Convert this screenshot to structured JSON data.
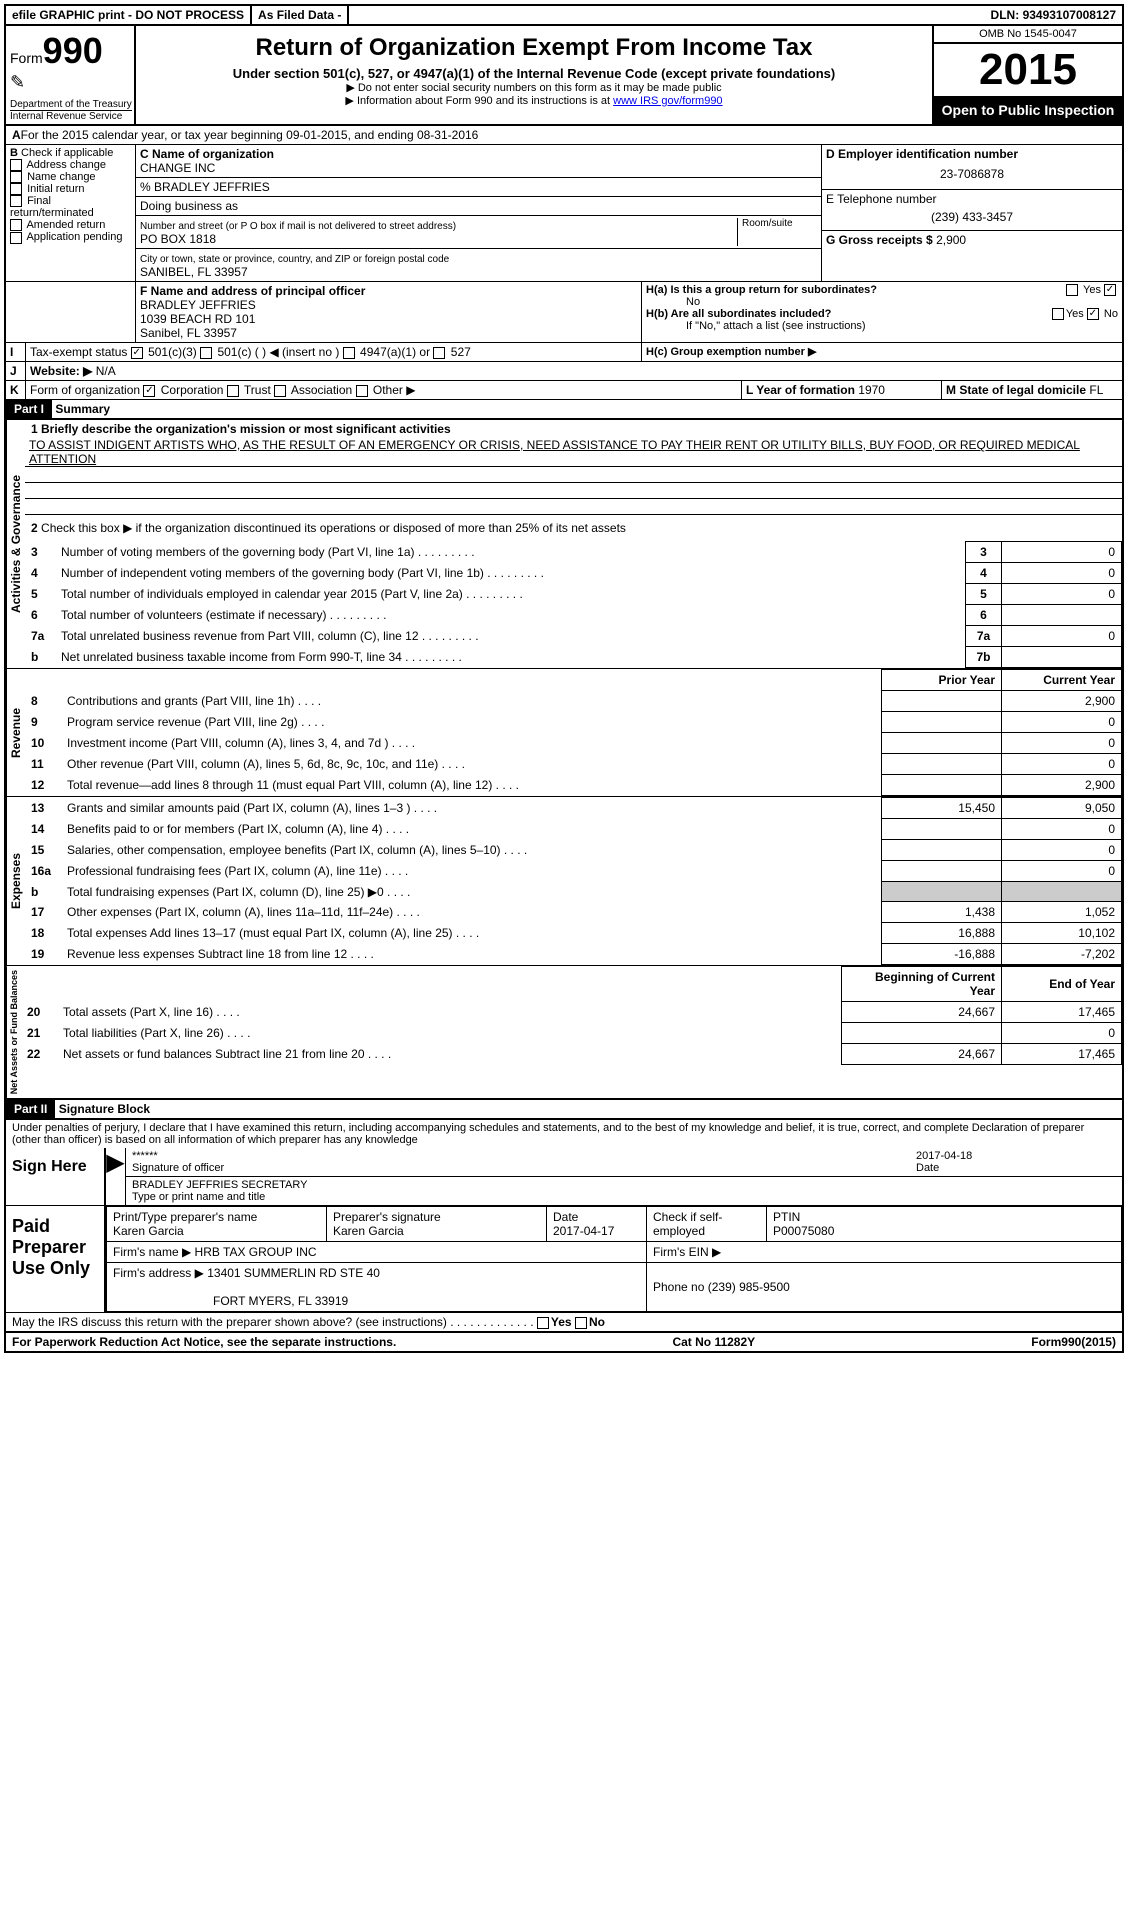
{
  "topbar": {
    "efile": "efile GRAPHIC print - DO NOT PROCESS",
    "asfiled": "As Filed Data -",
    "dln_label": "DLN:",
    "dln": "93493107008127"
  },
  "header": {
    "form_label": "Form",
    "form_num": "990",
    "dept": "Department of the Treasury",
    "irs": "Internal Revenue Service",
    "title": "Return of Organization Exempt From Income Tax",
    "subtitle": "Under section 501(c), 527, or 4947(a)(1) of the Internal Revenue Code (except private foundations)",
    "note1": "▶ Do not enter social security numbers on this form as it may be made public",
    "note2": "▶ Information about Form 990 and its instructions is at ",
    "note2_link": "www IRS gov/form990",
    "omb": "OMB No 1545-0047",
    "year": "2015",
    "open": "Open to Public Inspection"
  },
  "lineA": {
    "text": "For the 2015 calendar year, or tax year beginning 09-01-2015",
    "ending": ", and ending 08-31-2016"
  },
  "sectionB": {
    "label": "Check if applicable",
    "items": [
      "Address change",
      "Name change",
      "Initial return",
      "Final return/terminated",
      "Amended return",
      "Application pending"
    ]
  },
  "sectionC": {
    "name_label": "C Name of organization",
    "name": "CHANGE INC",
    "care_of": "% BRADLEY JEFFRIES",
    "dba_label": "Doing business as",
    "street_label": "Number and street (or P O  box if mail is not delivered to street address)",
    "room_label": "Room/suite",
    "street": "PO BOX 1818",
    "city_label": "City or town, state or province, country, and ZIP or foreign postal code",
    "city": "SANIBEL, FL  33957"
  },
  "sectionD": {
    "label": "D Employer identification number",
    "ein": "23-7086878"
  },
  "sectionE": {
    "label": "E Telephone number",
    "phone": "(239) 433-3457"
  },
  "sectionG": {
    "label": "G Gross receipts $",
    "amount": "2,900"
  },
  "sectionF": {
    "label": "F Name and address of principal officer",
    "name": "BRADLEY JEFFRIES",
    "addr1": "1039 BEACH RD 101",
    "addr2": "Sanibel, FL  33957"
  },
  "sectionH": {
    "ha": "H(a)  Is this a group return for subordinates?",
    "ha_no": "No",
    "hb": "H(b)  Are all subordinates included?",
    "hb_note": "If \"No,\" attach a list  (see instructions)",
    "hc": "H(c)   Group exemption number ▶"
  },
  "sectionI": {
    "label": "Tax-exempt status",
    "opt1": "501(c)(3)",
    "opt2": "501(c) (  ) ◀ (insert no )",
    "opt3": "4947(a)(1) or",
    "opt4": "527"
  },
  "sectionJ": {
    "label": "Website: ▶",
    "value": "N/A"
  },
  "sectionK": {
    "label": "Form of organization",
    "opts": [
      "Corporation",
      "Trust",
      "Association",
      "Other ▶"
    ]
  },
  "sectionL": {
    "label": "L Year of formation",
    "value": "1970"
  },
  "sectionM": {
    "label": "M State of legal domicile",
    "value": "FL"
  },
  "part1": {
    "header": "Part I",
    "title": "Summary",
    "mission_label": "1 Briefly describe the organization's mission or most significant activities",
    "mission": "TO ASSIST INDIGENT ARTISTS WHO, AS THE RESULT OF AN EMERGENCY OR CRISIS, NEED ASSISTANCE TO PAY THEIR RENT OR UTILITY BILLS, BUY FOOD, OR REQUIRED MEDICAL ATTENTION",
    "line2": "Check this box ▶     if the organization discontinued its operations or disposed of more than 25% of its net assets",
    "governance_label": "Activities & Governance",
    "revenue_label": "Revenue",
    "expenses_label": "Expenses",
    "netassets_label": "Net Assets or Fund Balances",
    "rows_gov": [
      {
        "n": "3",
        "d": "Number of voting members of the governing body (Part VI, line 1a)",
        "ln": "3",
        "v": "0"
      },
      {
        "n": "4",
        "d": "Number of independent voting members of the governing body (Part VI, line 1b)",
        "ln": "4",
        "v": "0"
      },
      {
        "n": "5",
        "d": "Total number of individuals employed in calendar year 2015 (Part V, line 2a)",
        "ln": "5",
        "v": "0"
      },
      {
        "n": "6",
        "d": "Total number of volunteers (estimate if necessary)",
        "ln": "6",
        "v": ""
      },
      {
        "n": "7a",
        "d": "Total unrelated business revenue from Part VIII, column (C), line 12",
        "ln": "7a",
        "v": "0"
      },
      {
        "n": "b",
        "d": "Net unrelated business taxable income from Form 990-T, line 34",
        "ln": "7b",
        "v": ""
      }
    ],
    "col_prior": "Prior Year",
    "col_current": "Current Year",
    "rows_rev": [
      {
        "n": "8",
        "d": "Contributions and grants (Part VIII, line 1h)",
        "p": "",
        "c": "2,900"
      },
      {
        "n": "9",
        "d": "Program service revenue (Part VIII, line 2g)",
        "p": "",
        "c": "0"
      },
      {
        "n": "10",
        "d": "Investment income (Part VIII, column (A), lines 3, 4, and 7d )",
        "p": "",
        "c": "0"
      },
      {
        "n": "11",
        "d": "Other revenue (Part VIII, column (A), lines 5, 6d, 8c, 9c, 10c, and 11e)",
        "p": "",
        "c": "0"
      },
      {
        "n": "12",
        "d": "Total revenue—add lines 8 through 11 (must equal Part VIII, column (A), line 12)",
        "p": "",
        "c": "2,900"
      }
    ],
    "rows_exp": [
      {
        "n": "13",
        "d": "Grants and similar amounts paid (Part IX, column (A), lines 1–3 )",
        "p": "15,450",
        "c": "9,050"
      },
      {
        "n": "14",
        "d": "Benefits paid to or for members (Part IX, column (A), line 4)",
        "p": "",
        "c": "0"
      },
      {
        "n": "15",
        "d": "Salaries, other compensation, employee benefits (Part IX, column (A), lines 5–10)",
        "p": "",
        "c": "0"
      },
      {
        "n": "16a",
        "d": "Professional fundraising fees (Part IX, column (A), line 11e)",
        "p": "",
        "c": "0"
      },
      {
        "n": "b",
        "d": "Total fundraising expenses (Part IX, column (D), line 25) ▶0",
        "p": "",
        "c": ""
      },
      {
        "n": "17",
        "d": "Other expenses (Part IX, column (A), lines 11a–11d, 11f–24e)",
        "p": "1,438",
        "c": "1,052"
      },
      {
        "n": "18",
        "d": "Total expenses  Add lines 13–17 (must equal Part IX, column (A), line 25)",
        "p": "16,888",
        "c": "10,102"
      },
      {
        "n": "19",
        "d": "Revenue less expenses  Subtract line 18 from line 12",
        "p": "-16,888",
        "c": "-7,202"
      }
    ],
    "col_begin": "Beginning of Current Year",
    "col_end": "End of Year",
    "rows_net": [
      {
        "n": "20",
        "d": "Total assets (Part X, line 16)",
        "p": "24,667",
        "c": "17,465"
      },
      {
        "n": "21",
        "d": "Total liabilities (Part X, line 26)",
        "p": "",
        "c": "0"
      },
      {
        "n": "22",
        "d": "Net assets or fund balances  Subtract line 21 from line 20",
        "p": "24,667",
        "c": "17,465"
      }
    ]
  },
  "part2": {
    "header": "Part II",
    "title": "Signature Block",
    "perjury": "Under penalties of perjury, I declare that I have examined this return, including accompanying schedules and statements, and to the best of my knowledge and belief, it is true, correct, and complete  Declaration of preparer (other than officer) is based on all information of which preparer has any knowledge",
    "sign_label": "Sign Here",
    "sig_stars": "******",
    "sig_officer_label": "Signature of officer",
    "sig_date": "2017-04-18",
    "sig_date_label": "Date",
    "officer_name": "BRADLEY JEFFRIES SECRETARY",
    "officer_name_label": "Type or print name and title",
    "paid_label": "Paid Preparer Use Only",
    "prep_name_label": "Print/Type preparer's name",
    "prep_name": "Karen Garcia",
    "prep_sig_label": "Preparer's signature",
    "prep_sig": "Karen Garcia",
    "prep_date_label": "Date",
    "prep_date": "2017-04-17",
    "self_emp": "Check         if self-employed",
    "ptin_label": "PTIN",
    "ptin": "P00075080",
    "firm_name_label": "Firm's name      ▶",
    "firm_name": "HRB TAX GROUP INC",
    "firm_ein_label": "Firm's EIN ▶",
    "firm_addr_label": "Firm's address ▶",
    "firm_addr": "13401 SUMMERLIN RD STE 40",
    "firm_city": "FORT MYERS, FL  33919",
    "firm_phone_label": "Phone no",
    "firm_phone": "(239) 985-9500",
    "discuss": "May the IRS discuss this return with the preparer shown above? (see instructions)",
    "paperwork": "For Paperwork Reduction Act Notice, see the separate instructions.",
    "catno": "Cat No  11282Y",
    "formno": "Form990(2015)"
  }
}
